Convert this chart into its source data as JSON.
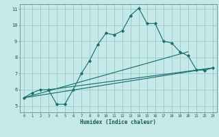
{
  "title": "",
  "xlabel": "Humidex (Indice chaleur)",
  "xlim": [
    -0.5,
    23.5
  ],
  "ylim": [
    4.6,
    11.3
  ],
  "xticks": [
    0,
    1,
    2,
    3,
    4,
    5,
    6,
    7,
    8,
    9,
    10,
    11,
    12,
    13,
    14,
    15,
    16,
    17,
    18,
    19,
    20,
    21,
    22,
    23
  ],
  "yticks": [
    5,
    6,
    7,
    8,
    9,
    10,
    11
  ],
  "bg_color": "#c5e8e8",
  "grid_color": "#9dcfcf",
  "line_color": "#1a7070",
  "line1_x": [
    0,
    1,
    2,
    3,
    4,
    5,
    6,
    7,
    8,
    9,
    10,
    11,
    12,
    13,
    14,
    15,
    16,
    17,
    18,
    19,
    20,
    21,
    22,
    23
  ],
  "line1_y": [
    5.5,
    5.8,
    6.0,
    6.0,
    5.1,
    5.1,
    6.0,
    7.0,
    7.8,
    8.8,
    9.5,
    9.4,
    9.65,
    10.6,
    11.05,
    10.1,
    10.1,
    9.0,
    8.9,
    8.35,
    8.1,
    7.25,
    7.2,
    7.35
  ],
  "line2_x": [
    0,
    23
  ],
  "line2_y": [
    5.5,
    7.35
  ],
  "line3_x": [
    0,
    20
  ],
  "line3_y": [
    5.5,
    8.35
  ],
  "line4_x": [
    3,
    23
  ],
  "line4_y": [
    6.0,
    7.35
  ]
}
